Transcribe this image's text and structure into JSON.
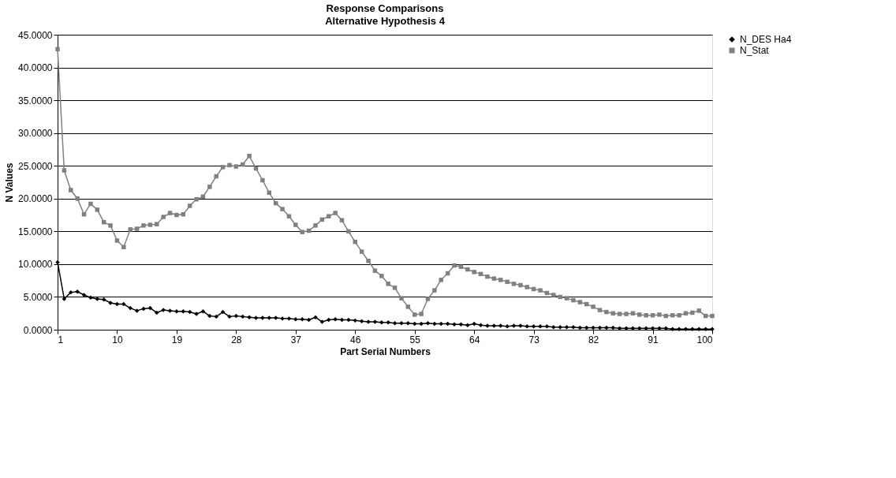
{
  "chart_data": {
    "type": "line",
    "title": "Response Comparisons",
    "subtitle": "Alternative Hypothesis 4",
    "xlabel": "Part Serial Numbers",
    "ylabel": "N Values",
    "categories": [
      "1",
      null,
      null,
      null,
      null,
      null,
      null,
      null,
      null,
      "10",
      null,
      null,
      null,
      null,
      null,
      null,
      null,
      null,
      "19",
      null,
      null,
      null,
      null,
      null,
      null,
      null,
      null,
      "28",
      null,
      null,
      null,
      null,
      null,
      null,
      null,
      null,
      "37",
      null,
      null,
      null,
      null,
      null,
      null,
      null,
      null,
      "46",
      null,
      null,
      null,
      null,
      null,
      null,
      null,
      null,
      "55",
      null,
      null,
      null,
      null,
      null,
      null,
      null,
      null,
      "64",
      null,
      null,
      null,
      null,
      null,
      null,
      null,
      null,
      "73",
      null,
      null,
      null,
      null,
      null,
      null,
      null,
      null,
      "82",
      null,
      null,
      null,
      null,
      null,
      null,
      null,
      null,
      "91",
      null,
      null,
      null,
      null,
      null,
      null,
      null,
      null,
      "100"
    ],
    "series": [
      {
        "name": "N_DES Ha4",
        "color": "#000000",
        "marker": "diamond",
        "values": [
          10.3,
          4.7,
          5.7,
          5.8,
          5.3,
          4.9,
          4.7,
          4.6,
          4.1,
          3.9,
          3.9,
          3.3,
          2.9,
          3.2,
          3.3,
          2.6,
          3.0,
          2.9,
          2.8,
          2.8,
          2.7,
          2.4,
          2.8,
          2.1,
          2.0,
          2.7,
          2.0,
          2.1,
          2.0,
          1.9,
          1.8,
          1.8,
          1.8,
          1.8,
          1.7,
          1.7,
          1.6,
          1.6,
          1.5,
          1.9,
          1.2,
          1.5,
          1.6,
          1.5,
          1.5,
          1.4,
          1.3,
          1.2,
          1.2,
          1.1,
          1.1,
          1.0,
          1.0,
          1.0,
          0.9,
          0.9,
          1.0,
          0.9,
          0.9,
          0.9,
          0.8,
          0.8,
          0.7,
          0.9,
          0.7,
          0.6,
          0.6,
          0.6,
          0.5,
          0.6,
          0.6,
          0.5,
          0.5,
          0.5,
          0.5,
          0.4,
          0.4,
          0.4,
          0.4,
          0.3,
          0.3,
          0.3,
          0.3,
          0.3,
          0.3,
          0.2,
          0.2,
          0.2,
          0.2,
          0.2,
          0.2,
          0.2,
          0.2,
          0.1,
          0.1,
          0.1,
          0.1,
          0.1,
          0.1,
          0.1
        ]
      },
      {
        "name": "N_Stat",
        "color": "#808080",
        "marker": "square",
        "values": [
          42.8,
          24.3,
          21.3,
          20.0,
          17.6,
          19.2,
          18.3,
          16.4,
          15.9,
          13.6,
          12.6,
          15.3,
          15.4,
          15.9,
          16.0,
          16.1,
          17.2,
          17.8,
          17.5,
          17.6,
          18.9,
          19.9,
          20.3,
          21.8,
          23.4,
          24.8,
          25.1,
          24.9,
          25.2,
          26.5,
          24.6,
          22.8,
          20.9,
          19.3,
          18.4,
          17.3,
          16.0,
          14.9,
          15.1,
          15.9,
          16.8,
          17.3,
          17.8,
          16.7,
          15.0,
          13.4,
          11.9,
          10.5,
          9.0,
          8.2,
          7.0,
          6.4,
          4.8,
          3.5,
          2.3,
          2.4,
          4.7,
          6.0,
          7.6,
          8.6,
          9.8,
          9.6,
          9.2,
          8.8,
          8.5,
          8.1,
          7.8,
          7.6,
          7.3,
          7.0,
          6.8,
          6.5,
          6.2,
          6.0,
          5.6,
          5.3,
          5.0,
          4.8,
          4.5,
          4.2,
          3.9,
          3.5,
          3.0,
          2.7,
          2.5,
          2.4,
          2.4,
          2.5,
          2.3,
          2.2,
          2.2,
          2.3,
          2.1,
          2.2,
          2.2,
          2.5,
          2.6,
          2.9,
          2.1,
          2.1
        ]
      }
    ],
    "ylim": [
      0,
      45
    ],
    "yticks": [
      {
        "value": 0,
        "label": "0.0000"
      },
      {
        "value": 5,
        "label": "5.0000"
      },
      {
        "value": 10,
        "label": "10.0000"
      },
      {
        "value": 15,
        "label": "15.0000"
      },
      {
        "value": 20,
        "label": "20.0000"
      },
      {
        "value": 25,
        "label": "25.0000"
      },
      {
        "value": 30,
        "label": "30.0000"
      },
      {
        "value": 35,
        "label": "35.0000"
      },
      {
        "value": 40,
        "label": "40.0000"
      },
      {
        "value": 45,
        "label": "45.0000"
      }
    ],
    "grid": "y",
    "legend": "right",
    "line_style": "solid"
  }
}
